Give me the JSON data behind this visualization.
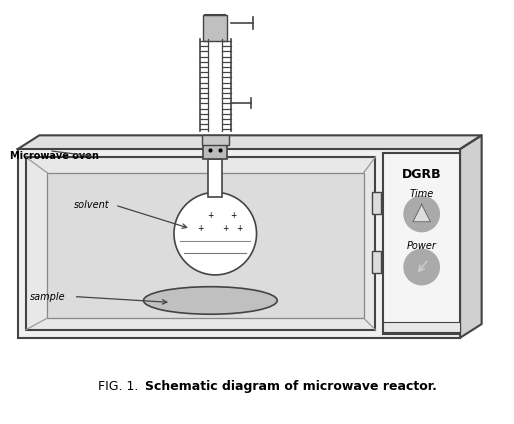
{
  "title_normal": "FIG. 1. ",
  "title_bold": "Schematic diagram of microwave reactor.",
  "bg_color": "#ffffff",
  "line_color": "#444444",
  "gray_fill": "#d8d8d8",
  "light_fill": "#eeeeee",
  "label_microwave_oven": "Microwave oven",
  "label_solvent": "solvent",
  "label_sample": "sample",
  "label_dgrb": "DGRB",
  "label_time": "Time",
  "label_power": "Power"
}
